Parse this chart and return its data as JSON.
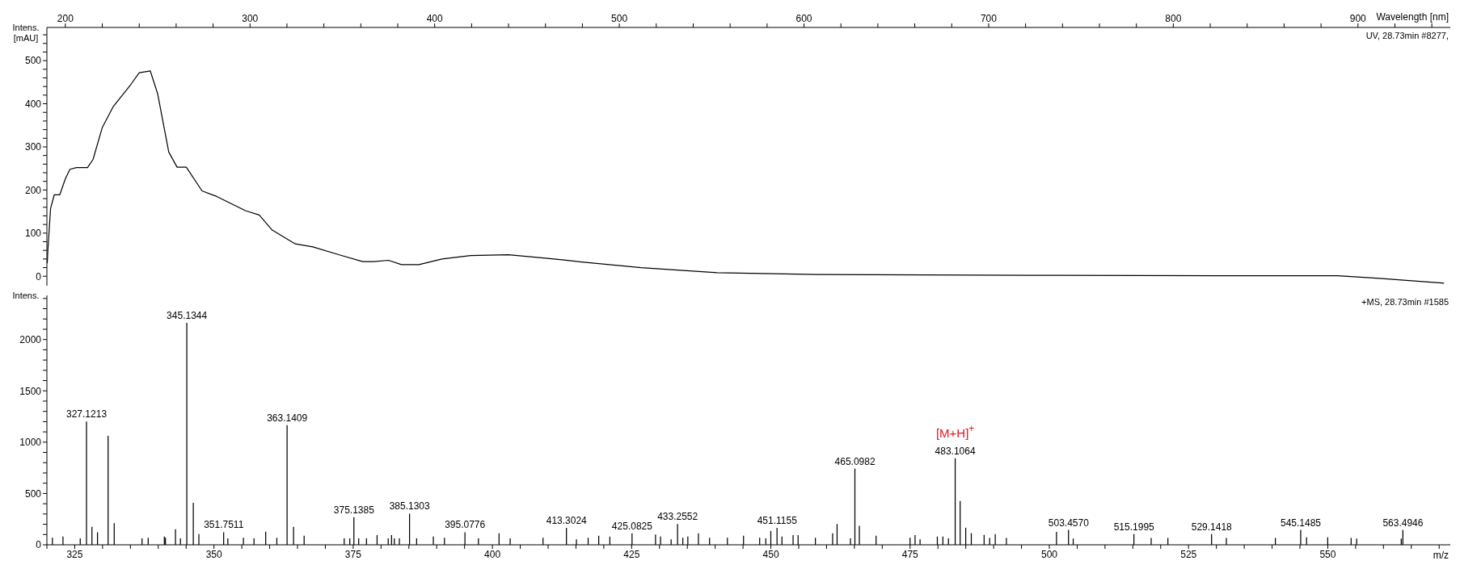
{
  "chart_data": [
    {
      "type": "line",
      "xlabel": "Wavelength [nm]",
      "ylabel": "Intens. [mAU]",
      "annotations": [
        "UV, 28.73min #8277,"
      ],
      "color": "#000000",
      "x": [
        190.2,
        190.5,
        192,
        194,
        197,
        200,
        202.5,
        206,
        212,
        215,
        220,
        226,
        235.5,
        240,
        246,
        250,
        256,
        260.5,
        265.5,
        274,
        282,
        297.5,
        305,
        312,
        324.5,
        334,
        348,
        361,
        367,
        375,
        382,
        391.5,
        404,
        419.5,
        440,
        460,
        469,
        479.7,
        511.7,
        553,
        607.6,
        735.6,
        825,
        889,
        911.5,
        946.6
      ],
      "values": [
        30,
        58,
        157,
        189,
        189,
        226,
        248,
        252,
        252,
        271,
        345,
        394,
        445,
        472,
        476,
        423,
        288,
        253,
        253,
        198,
        185,
        152,
        142,
        107,
        75,
        68,
        50,
        34,
        34,
        37,
        27,
        27,
        40,
        48,
        50,
        42,
        38,
        33,
        20,
        8,
        4,
        2,
        1,
        1,
        -5,
        -16
      ],
      "xlim": [
        190,
        950
      ],
      "xticks": [
        200,
        {
          "value": 220,
          "label": null
        },
        {
          "value": 240,
          "label": null
        },
        {
          "value": 260,
          "label": null
        },
        {
          "value": 280,
          "label": null
        },
        300,
        {
          "value": 320,
          "label": null
        },
        {
          "value": 340,
          "label": null
        },
        {
          "value": 360,
          "label": null
        },
        {
          "value": 380,
          "label": null
        },
        400,
        {
          "value": 420,
          "label": null
        },
        {
          "value": 440,
          "label": null
        },
        {
          "value": 460,
          "label": null
        },
        {
          "value": 480,
          "label": null
        },
        500,
        {
          "value": 520,
          "label": null
        },
        {
          "value": 540,
          "label": null
        },
        {
          "value": 560,
          "label": null
        },
        {
          "value": 580,
          "label": null
        },
        600,
        {
          "value": 620,
          "label": null
        },
        {
          "value": 640,
          "label": null
        },
        {
          "value": 660,
          "label": null
        },
        {
          "value": 680,
          "label": null
        },
        700,
        {
          "value": 720,
          "label": null
        },
        {
          "value": 740,
          "label": null
        },
        {
          "value": 760,
          "label": null
        },
        {
          "value": 780,
          "label": null
        },
        800,
        {
          "value": 820,
          "label": null
        },
        {
          "value": 840,
          "label": null
        },
        {
          "value": 860,
          "label": null
        },
        {
          "value": 880,
          "label": null
        },
        900,
        {
          "value": 920,
          "label": null
        },
        {
          "value": 940,
          "label": null
        }
      ],
      "ylim": [
        -22,
        577
      ],
      "yticks": [
        0,
        {
          "value": 20,
          "label": null
        },
        {
          "value": 40,
          "label": null
        },
        {
          "value": 60,
          "label": null
        },
        {
          "value": 80,
          "label": null
        },
        100,
        {
          "value": 120,
          "label": null
        },
        {
          "value": 140,
          "label": null
        },
        {
          "value": 160,
          "label": null
        },
        {
          "value": 180,
          "label": null
        },
        200,
        {
          "value": 220,
          "label": null
        },
        {
          "value": 240,
          "label": null
        },
        {
          "value": 260,
          "label": null
        },
        {
          "value": 280,
          "label": null
        },
        300,
        {
          "value": 320,
          "label": null
        },
        {
          "value": 340,
          "label": null
        },
        {
          "value": 360,
          "label": null
        },
        {
          "value": 380,
          "label": null
        },
        400,
        {
          "value": 420,
          "label": null
        },
        {
          "value": 440,
          "label": null
        },
        {
          "value": 460,
          "label": null
        },
        {
          "value": 480,
          "label": null
        },
        500,
        {
          "value": 520,
          "label": null
        },
        {
          "value": 540,
          "label": null
        },
        {
          "value": 560,
          "label": null
        }
      ]
    },
    {
      "type": "bar",
      "xlabel": "m/z",
      "ylabel": "Intens.",
      "annotations": [
        "+MS, 28.73min #1585",
        {
          "text": "327.1213",
          "x": 327.1213,
          "y": 1202
        },
        {
          "text": "345.1344",
          "x": 345.1344,
          "y": 2163
        },
        {
          "text": "351.7511",
          "x": 351.7511,
          "y": 122
        },
        {
          "text": "363.1409",
          "x": 363.1409,
          "y": 1166
        },
        {
          "text": "375.1385",
          "x": 375.1385,
          "y": 270
        },
        {
          "text": "385.1303",
          "x": 385.1303,
          "y": 303
        },
        {
          "text": "395.0776",
          "x": 395.0776,
          "y": 122
        },
        {
          "text": "413.3024",
          "x": 413.3024,
          "y": 166
        },
        {
          "text": "425.0825",
          "x": 425.0825,
          "y": 113
        },
        {
          "text": "433.2552",
          "x": 433.2552,
          "y": 202
        },
        {
          "text": "451.1155",
          "x": 451.1155,
          "y": 166
        },
        {
          "text": "465.0982",
          "x": 465.0982,
          "y": 742
        },
        {
          "text": "483.1064",
          "x": 483.1064,
          "y": 843
        },
        {
          "text": "[M+H]$^{+}$",
          "x": 483.1064,
          "y": 843
        },
        {
          "text": "503.4570",
          "x": 503.457,
          "y": 145
        },
        {
          "text": "515.1995",
          "x": 515.1995,
          "y": 104
        },
        {
          "text": "529.1418",
          "x": 529.1418,
          "y": 104
        },
        {
          "text": "545.1485",
          "x": 545.1485,
          "y": 145
        },
        {
          "text": "563.4946",
          "x": 563.4946,
          "y": 145
        }
      ],
      "color": "#000000",
      "x": [
        321.0,
        322.9,
        326.0,
        327.1213,
        328.1,
        329.1,
        331.0,
        332.1,
        337.1,
        338.2,
        341.1,
        341.3,
        343.1,
        344.0,
        345.1344,
        346.3,
        347.3,
        351.7511,
        352.5,
        355.3,
        357.2,
        359.3,
        361.3,
        363.1409,
        364.3,
        366.2,
        373.4,
        374.4,
        375.1385,
        376.0,
        377.4,
        379.3,
        381.3,
        381.9,
        382.4,
        383.3,
        385.1303,
        386.4,
        389.4,
        391.4,
        395.0776,
        397.5,
        401.2,
        403.2,
        409.1,
        413.3024,
        415.1,
        417.2,
        419.1,
        421.1,
        425.0825,
        429.3,
        430.2,
        432.1,
        433.2552,
        434.2,
        435.1,
        437.0,
        439.0,
        442.2,
        445.1,
        448.0,
        449.1,
        450.0,
        451.1155,
        452.0,
        454.0,
        454.9,
        458.0,
        461.1,
        461.9,
        464.3,
        465.0982,
        465.9,
        468.9,
        475.0,
        475.9,
        476.8,
        479.9,
        480.9,
        481.9,
        483.1064,
        484.0,
        485.0,
        486.0,
        488.3,
        489.3,
        490.3,
        492.3,
        501.3,
        503.457,
        504.3,
        515.1995,
        518.3,
        521.3,
        529.1418,
        531.8,
        540.6,
        545.1485,
        546.2,
        550.0,
        554.2,
        555.2,
        563.2,
        563.4946
      ],
      "values": [
        68,
        80,
        62,
        1202,
        175,
        122,
        1062,
        211,
        62,
        68,
        80,
        68,
        151,
        62,
        2163,
        409,
        104,
        122,
        62,
        68,
        62,
        128,
        68,
        1166,
        175,
        89,
        62,
        62,
        270,
        62,
        62,
        95,
        62,
        95,
        62,
        62,
        303,
        62,
        80,
        68,
        122,
        62,
        113,
        62,
        68,
        166,
        53,
        68,
        89,
        80,
        113,
        101,
        80,
        53,
        202,
        68,
        80,
        113,
        68,
        68,
        89,
        68,
        62,
        134,
        166,
        80,
        95,
        95,
        68,
        113,
        202,
        62,
        742,
        184,
        89,
        68,
        95,
        53,
        80,
        80,
        62,
        843,
        427,
        166,
        113,
        96,
        67,
        104,
        67,
        125,
        145,
        61,
        104,
        67,
        67,
        104,
        67,
        67,
        145,
        73,
        73,
        67,
        61,
        61,
        145
      ],
      "xlim": [
        320,
        572
      ],
      "xticks": [
        {
          "value": 320,
          "label": null
        },
        325,
        {
          "value": 330,
          "label": null
        },
        {
          "value": 335,
          "label": null
        },
        {
          "value": 340,
          "label": null
        },
        {
          "value": 345,
          "label": null
        },
        350,
        {
          "value": 355,
          "label": null
        },
        {
          "value": 360,
          "label": null
        },
        {
          "value": 365,
          "label": null
        },
        {
          "value": 370,
          "label": null
        },
        375,
        {
          "value": 380,
          "label": null
        },
        {
          "value": 385,
          "label": null
        },
        {
          "value": 390,
          "label": null
        },
        {
          "value": 395,
          "label": null
        },
        400,
        {
          "value": 405,
          "label": null
        },
        {
          "value": 410,
          "label": null
        },
        {
          "value": 415,
          "label": null
        },
        {
          "value": 420,
          "label": null
        },
        425,
        {
          "value": 430,
          "label": null
        },
        {
          "value": 435,
          "label": null
        },
        {
          "value": 440,
          "label": null
        },
        {
          "value": 445,
          "label": null
        },
        450,
        {
          "value": 455,
          "label": null
        },
        {
          "value": 460,
          "label": null
        },
        {
          "value": 465,
          "label": null
        },
        {
          "value": 470,
          "label": null
        },
        475,
        {
          "value": 480,
          "label": null
        },
        {
          "value": 485,
          "label": null
        },
        {
          "value": 490,
          "label": null
        },
        {
          "value": 495,
          "label": null
        },
        500,
        {
          "value": 505,
          "label": null
        },
        {
          "value": 510,
          "label": null
        },
        {
          "value": 515,
          "label": null
        },
        {
          "value": 520,
          "label": null
        },
        525,
        {
          "value": 530,
          "label": null
        },
        {
          "value": 535,
          "label": null
        },
        {
          "value": 540,
          "label": null
        },
        {
          "value": 545,
          "label": null
        },
        550,
        {
          "value": 555,
          "label": null
        },
        {
          "value": 560,
          "label": null
        },
        {
          "value": 565,
          "label": null
        },
        {
          "value": 570,
          "label": null
        }
      ],
      "ylim": [
        0,
        2430
      ],
      "yticks": [
        0,
        {
          "value": 100,
          "label": null
        },
        {
          "value": 200,
          "label": null
        },
        {
          "value": 300,
          "label": null
        },
        {
          "value": 400,
          "label": null
        },
        500,
        {
          "value": 600,
          "label": null
        },
        {
          "value": 700,
          "label": null
        },
        {
          "value": 800,
          "label": null
        },
        {
          "value": 900,
          "label": null
        },
        1000,
        {
          "value": 1100,
          "label": null
        },
        {
          "value": 1200,
          "label": null
        },
        {
          "value": 1300,
          "label": null
        },
        {
          "value": 1400,
          "label": null
        },
        1500,
        {
          "value": 1600,
          "label": null
        },
        {
          "value": 1700,
          "label": null
        },
        {
          "value": 1800,
          "label": null
        },
        {
          "value": 1900,
          "label": null
        },
        2000,
        {
          "value": 2100,
          "label": null
        },
        {
          "value": 2200,
          "label": null
        },
        {
          "value": 2300,
          "label": null
        },
        {
          "value": 2400,
          "label": null
        }
      ]
    }
  ]
}
